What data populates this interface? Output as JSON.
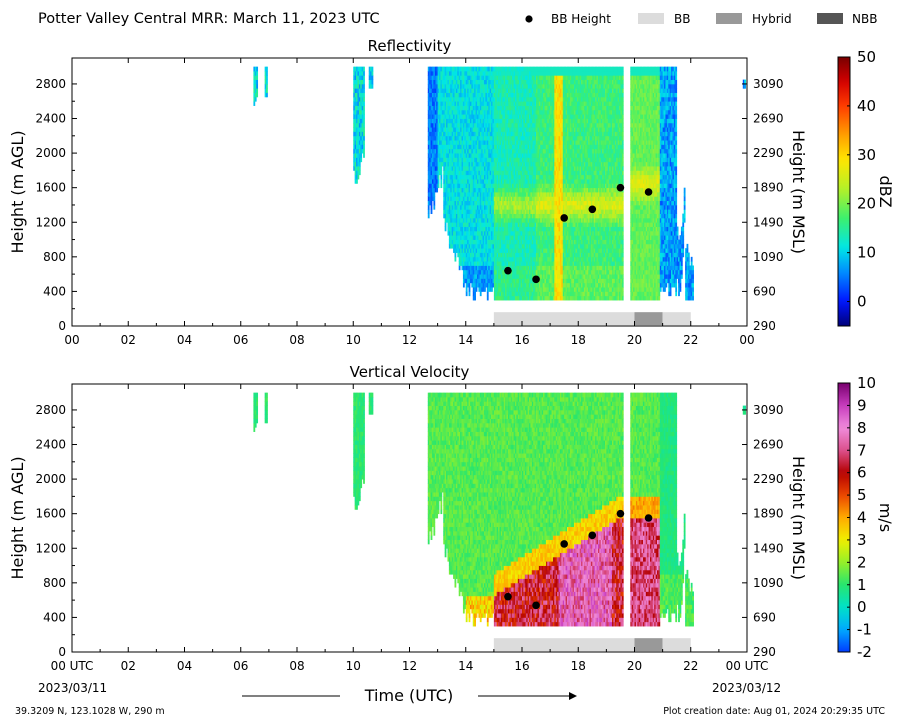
{
  "page": {
    "title": "Potter Valley Central MRR:  March 11, 2023 UTC",
    "location": "39.3209 N, 123.1028 W, 290 m",
    "creation": "Plot creation date: Aug 01, 2024 20:29:35 UTC"
  },
  "legend": {
    "items": [
      {
        "label": "BB Height",
        "marker": "dot",
        "color": "#000000"
      },
      {
        "label": "BB",
        "marker": "box",
        "color": "#dcdcdc"
      },
      {
        "label": "Hybrid",
        "marker": "box",
        "color": "#999999"
      },
      {
        "label": "NBB",
        "marker": "box",
        "color": "#555555"
      }
    ]
  },
  "chart_data": [
    {
      "type": "heatmap",
      "title": "Reflectivity",
      "ylabel": "Height (m AGL)",
      "y2label": "Height (m MSL)",
      "colorbar_label": "dBZ",
      "xlim": [
        0,
        24
      ],
      "ylim": [
        0,
        3100
      ],
      "xticks": [
        "00",
        "02",
        "04",
        "06",
        "08",
        "10",
        "12",
        "14",
        "16",
        "18",
        "20",
        "22",
        "00"
      ],
      "yticks": [
        0,
        400,
        800,
        1200,
        1600,
        2000,
        2400,
        2800
      ],
      "y2ticks": [
        290,
        690,
        1090,
        1490,
        1890,
        2290,
        2690,
        3090
      ],
      "colorbar_range": [
        -5,
        50
      ],
      "colorbar_ticks": [
        0,
        10,
        20,
        30,
        40,
        50
      ],
      "bb_height": [
        {
          "x": 15.5,
          "y": 640
        },
        {
          "x": 16.5,
          "y": 540
        },
        {
          "x": 17.5,
          "y": 1250
        },
        {
          "x": 18.5,
          "y": 1350
        },
        {
          "x": 19.5,
          "y": 1600
        },
        {
          "x": 20.5,
          "y": 1550
        }
      ],
      "bb_type_bar": [
        {
          "type": "BB",
          "x0": 15.0,
          "x1": 20.0
        },
        {
          "type": "Hybrid",
          "x0": 20.0,
          "x1": 21.0
        },
        {
          "type": "BB",
          "x0": 21.0,
          "x1": 22.0
        }
      ]
    },
    {
      "type": "heatmap",
      "title": "Vertical Velocity",
      "ylabel": "Height (m AGL)",
      "y2label": "Height (m MSL)",
      "xlabel": "Time (UTC)",
      "colorbar_label": "m/s",
      "xlim": [
        0,
        24
      ],
      "ylim": [
        0,
        3100
      ],
      "xticks": [
        "00 UTC",
        "02",
        "04",
        "06",
        "08",
        "10",
        "12",
        "14",
        "16",
        "18",
        "20",
        "22",
        "00 UTC"
      ],
      "x_start_date": "2023/03/11",
      "x_end_date": "2023/03/12",
      "yticks": [
        0,
        400,
        800,
        1200,
        1600,
        2000,
        2400,
        2800
      ],
      "y2ticks": [
        290,
        690,
        1090,
        1490,
        1890,
        2290,
        2690,
        3090
      ],
      "colorbar_range": [
        -2,
        10
      ],
      "colorbar_ticks": [
        -2,
        -1,
        0,
        1,
        2,
        3,
        4,
        5,
        6,
        7,
        8,
        9,
        10
      ],
      "bb_height": [
        {
          "x": 15.5,
          "y": 640
        },
        {
          "x": 16.5,
          "y": 540
        },
        {
          "x": 17.5,
          "y": 1250
        },
        {
          "x": 18.5,
          "y": 1350
        },
        {
          "x": 19.5,
          "y": 1600
        },
        {
          "x": 20.5,
          "y": 1550
        }
      ],
      "bb_type_bar": [
        {
          "type": "BB",
          "x0": 15.0,
          "x1": 20.0
        },
        {
          "type": "Hybrid",
          "x0": 20.0,
          "x1": 21.0
        },
        {
          "type": "BB",
          "x0": 21.0,
          "x1": 22.0
        }
      ]
    }
  ]
}
